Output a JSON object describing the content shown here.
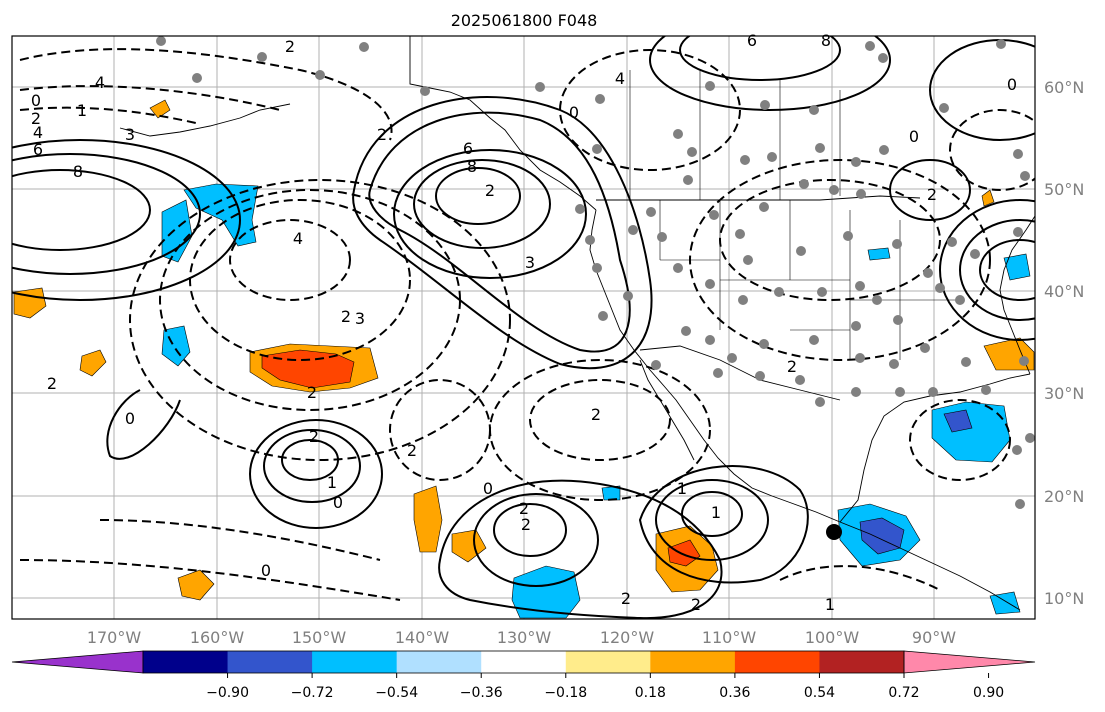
{
  "title": "2025061800 F048",
  "map": {
    "lon_ticks": [
      "170°W",
      "160°W",
      "150°W",
      "140°W",
      "130°W",
      "120°W",
      "110°W",
      "100°W",
      "90°W"
    ],
    "lat_ticks": [
      "60°N",
      "50°N",
      "40°N",
      "30°N",
      "20°N",
      "10°N"
    ],
    "contour_labels": [
      "0",
      "1",
      "2",
      "4",
      "3",
      "6",
      "8",
      "2",
      "4",
      "6",
      "8",
      "4",
      "3",
      "2",
      "6",
      "8",
      "2",
      "0",
      "2",
      "3",
      "2",
      "2",
      "2",
      "1",
      "0",
      "0",
      "2",
      "2",
      "1",
      "0",
      "2",
      "1",
      "2",
      "2",
      "0",
      "2",
      "1",
      "0",
      "2",
      "2",
      "0",
      "4"
    ],
    "marker": "black-dot",
    "colors": {
      "strong_negative": "#1e90ff",
      "negative": "#00bfff",
      "positive": "#ffa500",
      "strong_positive": "#ff4500"
    }
  },
  "colorbar": {
    "colors": [
      "#9932cc",
      "#00008b",
      "#3355cc",
      "#00bfff",
      "#b0e0ff",
      "#ffffff",
      "#ffec8b",
      "#ffa500",
      "#ff4500",
      "#b22222",
      "#ff88aa"
    ],
    "tick_labels": [
      "−0.90",
      "−0.72",
      "−0.54",
      "−0.36",
      "−0.18",
      "0.18",
      "0.36",
      "0.54",
      "0.72",
      "0.90"
    ]
  }
}
